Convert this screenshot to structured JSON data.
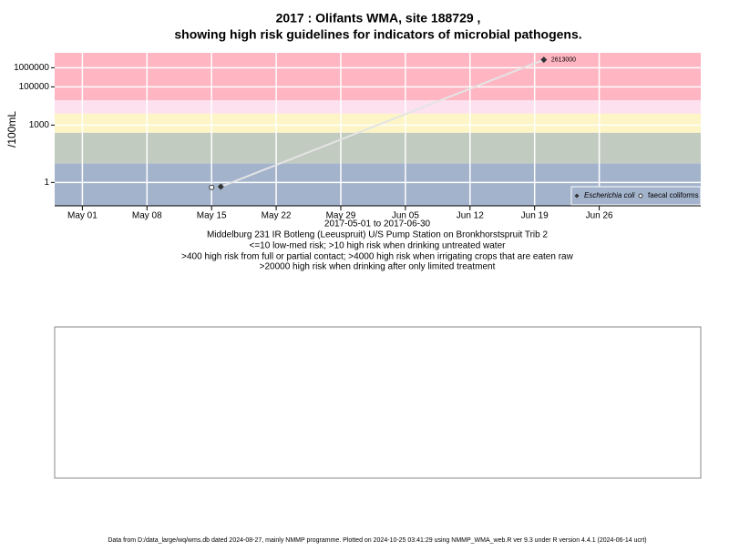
{
  "chart_data": {
    "type": "line",
    "title": "2017 : Olifants WMA, site 188729 ,",
    "subtitle": "showing high risk guidelines for indicators of microbial pathogens.",
    "y_label": "/100mL",
    "x_label": "2017-05-01 to 2017-06-30",
    "site": "Middelburg 231 IR Botleng (Leeuspruit) U/S Pump Station on Bronkhorstspruit Trib 2",
    "annotations": [
      "<=10 low-med risk; >10 high risk when drinking untreated water",
      ">400 high risk from full or partial contact; >4000 high risk when irrigating crops that are eaten raw",
      ">20000 high risk when drinking after only limited treatment"
    ],
    "log_y": true,
    "ylim": [
      0.06,
      6000000
    ],
    "yticks": [
      1,
      1000,
      100000,
      1000000
    ],
    "xlim": [
      "2017-04-28",
      "2017-07-07"
    ],
    "xticks": [
      {
        "value": "2017-05-01",
        "label": "May 01"
      },
      {
        "value": "2017-05-08",
        "label": "May 08"
      },
      {
        "value": "2017-05-15",
        "label": "May 15"
      },
      {
        "value": "2017-05-22",
        "label": "May 22"
      },
      {
        "value": "2017-05-29",
        "label": "May 29"
      },
      {
        "value": "2017-06-05",
        "label": "Jun 05"
      },
      {
        "value": "2017-06-12",
        "label": "Jun 12"
      },
      {
        "value": "2017-06-19",
        "label": "Jun 19"
      },
      {
        "value": "2017-06-26",
        "label": "Jun 26"
      }
    ],
    "band_breaks": [
      10,
      400,
      4000,
      20000
    ],
    "band_colors": [
      "#a3b3cc",
      "#c2cbc0",
      "#fdf5c5",
      "#fde1ef",
      "#ffb5c2"
    ],
    "grid": true,
    "legend": "bottom-right",
    "series": [
      {
        "name": "Escherichia coli",
        "color": "#333333",
        "x": [
          "2017-05-16",
          "2017-06-20"
        ],
        "values": [
          0.6,
          2613000
        ]
      },
      {
        "name": "faecal coliforms",
        "color": "#333333",
        "x": [
          "2017-05-15"
        ],
        "values": [
          0.55
        ]
      }
    ]
  },
  "footer": "Data from D:/data_large/wq/wms.db dated 2024-08-27, mainly NMMP programme. Plotted on 2024-10-25 03:41:29 using NMMP_WMA_web.R ver 9.3 under R version 4.4.1 (2024-06-14 ucrt)"
}
